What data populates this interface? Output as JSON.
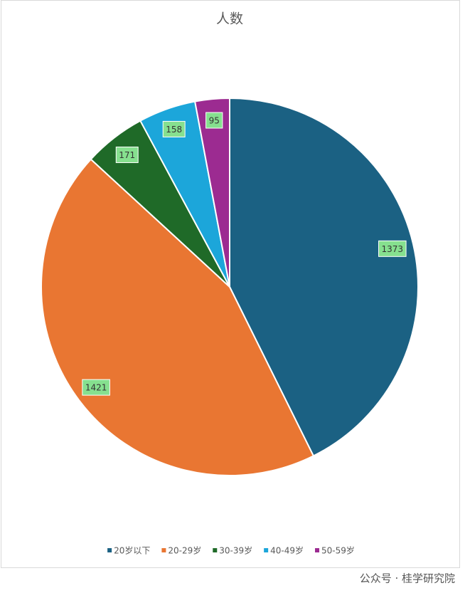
{
  "chart_data": {
    "type": "pie",
    "title": "人数",
    "categories": [
      "20岁以下",
      "20-29岁",
      "30-39岁",
      "40-49岁",
      "50-59岁"
    ],
    "values": [
      1373,
      1421,
      171,
      158,
      95
    ],
    "colors": [
      "#1b6183",
      "#e97632",
      "#1f6a28",
      "#1ca6da",
      "#9c2b91"
    ],
    "legend": "bottom",
    "watermark": "公众号 · 桂学研究院"
  }
}
